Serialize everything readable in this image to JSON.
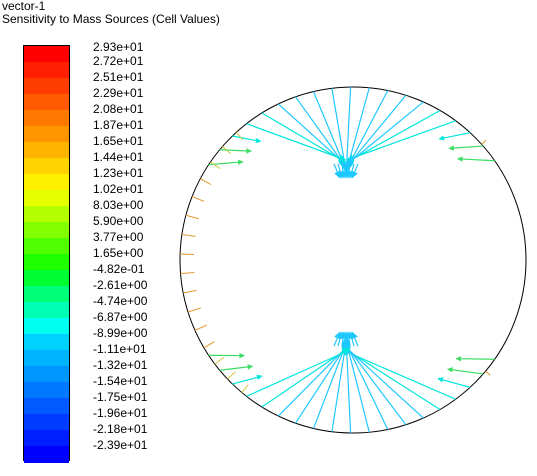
{
  "header": {
    "line1": "vector-1",
    "line2": "Sensitivity to Mass Sources (Cell Values)"
  },
  "colorbar": {
    "labels": [
      "2.93e+01",
      "2.72e+01",
      "2.51e+01",
      "2.29e+01",
      "2.08e+01",
      "1.87e+01",
      "1.65e+01",
      "1.44e+01",
      "1.23e+01",
      "1.02e+01",
      "8.03e+00",
      "5.90e+00",
      "3.77e+00",
      "1.65e+00",
      "-4.82e-01",
      "-2.61e+00",
      "-4.74e+00",
      "-6.87e+00",
      "-8.99e+00",
      "-1.11e+01",
      "-1.32e+01",
      "-1.54e+01",
      "-1.75e+01",
      "-1.96e+01",
      "-2.18e+01",
      "-2.39e+01"
    ],
    "colors": [
      "#ff0000",
      "#ff1e00",
      "#ff3c00",
      "#ff5a00",
      "#ff7800",
      "#ff9600",
      "#ffb400",
      "#ffd200",
      "#fff000",
      "#e6ff00",
      "#b4ff00",
      "#82ff00",
      "#50ff00",
      "#1eff00",
      "#00ff32",
      "#00ff78",
      "#00ffb4",
      "#00fff0",
      "#00d2ff",
      "#00b4ff",
      "#0096ff",
      "#0078ff",
      "#005aff",
      "#003cff",
      "#001eff",
      "#0000ff"
    ]
  },
  "plot": {
    "circle_stroke": "#000000",
    "vector_colors": {
      "inner": "#1ec8ff",
      "mid": "#00e6dc",
      "edge_green": "#3cdc64",
      "edge_orange": "#e69632",
      "edge_yellow": "#d2c83c"
    }
  }
}
